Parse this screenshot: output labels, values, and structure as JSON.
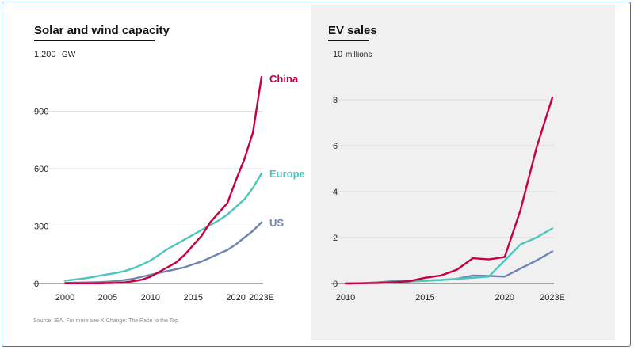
{
  "source_note": "Source: IEA. For more see X-Change: The Race to the Top.",
  "charts": [
    {
      "title": "Solar and wind capacity"
    },
    {
      "title": "EV sales"
    }
  ],
  "chart_data": [
    {
      "type": "line",
      "title": "Solar and wind capacity",
      "unit": "GW",
      "x_tick_labels": [
        "2000",
        "2005",
        "2010",
        "2015",
        "2020",
        "2023E"
      ],
      "y_tick_labels": [
        "0",
        "300",
        "600",
        "900",
        "1,200"
      ],
      "xlim": [
        2000,
        2023
      ],
      "ylim": [
        0,
        1200
      ],
      "grid": "horizontal",
      "series": [
        {
          "name": "China",
          "color": "#c8003c",
          "x": [
            2000,
            2001,
            2002,
            2003,
            2004,
            2005,
            2006,
            2007,
            2008,
            2009,
            2010,
            2011,
            2012,
            2013,
            2014,
            2015,
            2016,
            2017,
            2018,
            2019,
            2020,
            2021,
            2022,
            2023
          ],
          "y": [
            1,
            1,
            1,
            1,
            1,
            2,
            3,
            6,
            12,
            20,
            35,
            60,
            85,
            110,
            150,
            200,
            250,
            320,
            370,
            420,
            540,
            650,
            790,
            1080
          ]
        },
        {
          "name": "Europe",
          "color": "#4dc6bd",
          "x": [
            2000,
            2001,
            2002,
            2003,
            2004,
            2005,
            2006,
            2007,
            2008,
            2009,
            2010,
            2011,
            2012,
            2013,
            2014,
            2015,
            2016,
            2017,
            2018,
            2019,
            2020,
            2021,
            2022,
            2023
          ],
          "y": [
            15,
            20,
            25,
            32,
            40,
            48,
            55,
            65,
            80,
            98,
            120,
            150,
            180,
            205,
            230,
            255,
            280,
            305,
            330,
            360,
            400,
            440,
            500,
            575
          ]
        },
        {
          "name": "US",
          "color": "#6f84b3",
          "x": [
            2000,
            2001,
            2002,
            2003,
            2004,
            2005,
            2006,
            2007,
            2008,
            2009,
            2010,
            2011,
            2012,
            2013,
            2014,
            2015,
            2016,
            2017,
            2018,
            2019,
            2020,
            2021,
            2022,
            2023
          ],
          "y": [
            3,
            4,
            5,
            6,
            7,
            9,
            12,
            18,
            25,
            35,
            45,
            55,
            65,
            75,
            85,
            100,
            115,
            135,
            155,
            175,
            205,
            240,
            275,
            320
          ]
        }
      ]
    },
    {
      "type": "line",
      "title": "EV sales",
      "unit": "millions",
      "x_tick_labels": [
        "2010",
        "2015",
        "2020",
        "2023E"
      ],
      "y_tick_labels": [
        "0",
        "2",
        "4",
        "6",
        "8",
        "10"
      ],
      "xlim": [
        2010,
        2023
      ],
      "ylim": [
        0,
        10
      ],
      "grid": "horizontal",
      "series": [
        {
          "name": "China",
          "color": "#c8003c",
          "x": [
            2010,
            2011,
            2012,
            2013,
            2014,
            2015,
            2016,
            2017,
            2018,
            2019,
            2020,
            2021,
            2022,
            2023
          ],
          "y": [
            0,
            0.01,
            0.02,
            0.05,
            0.1,
            0.25,
            0.35,
            0.6,
            1.1,
            1.05,
            1.15,
            3.2,
            5.9,
            8.1
          ]
        },
        {
          "name": "Europe",
          "color": "#4dc6bd",
          "x": [
            2010,
            2011,
            2012,
            2013,
            2014,
            2015,
            2016,
            2017,
            2018,
            2019,
            2020,
            2021,
            2022,
            2023
          ],
          "y": [
            0,
            0.01,
            0.02,
            0.04,
            0.08,
            0.12,
            0.15,
            0.2,
            0.25,
            0.3,
            1.0,
            1.7,
            2.0,
            2.4
          ]
        },
        {
          "name": "US",
          "color": "#6f84b3",
          "x": [
            2010,
            2011,
            2012,
            2013,
            2014,
            2015,
            2016,
            2017,
            2018,
            2019,
            2020,
            2021,
            2022,
            2023
          ],
          "y": [
            0,
            0.01,
            0.05,
            0.1,
            0.12,
            0.12,
            0.15,
            0.2,
            0.35,
            0.33,
            0.3,
            0.65,
            1.0,
            1.4
          ]
        }
      ]
    }
  ]
}
